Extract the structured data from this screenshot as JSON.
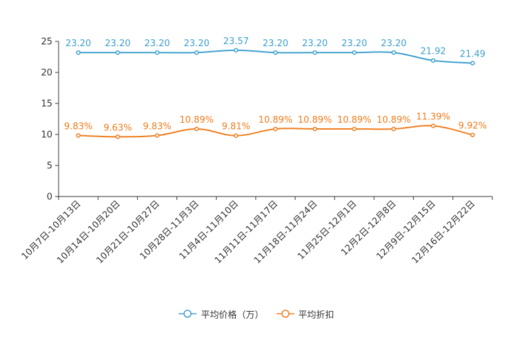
{
  "chart_data": {
    "type": "line",
    "title": "",
    "xlabel": "",
    "ylabel": "",
    "ylim": [
      0,
      25
    ],
    "yticks": [
      0,
      5,
      10,
      15,
      20,
      25
    ],
    "grid": false,
    "legend_position": "bottom-center",
    "categories": [
      "10月7日-10月13日",
      "10月14日-10月20日",
      "10月21日-10月27日",
      "10月28日-11月3日",
      "11月4日-11月10日",
      "11月11日-11月17日",
      "11月18日-11月24日",
      "11月25日-12月1日",
      "12月2日-12月8日",
      "12月9日-12月15日",
      "12月16日-12月22日"
    ],
    "series": [
      {
        "name": "平均价格（万）",
        "color": "#3d9fce",
        "values": [
          23.2,
          23.2,
          23.2,
          23.2,
          23.57,
          23.2,
          23.2,
          23.2,
          23.2,
          21.92,
          21.49
        ],
        "labels": [
          "23.20",
          "23.20",
          "23.20",
          "23.20",
          "23.57",
          "23.20",
          "23.20",
          "23.20",
          "23.20",
          "21.92",
          "21.49"
        ]
      },
      {
        "name": "平均折扣",
        "color": "#f07c1c",
        "values": [
          9.83,
          9.63,
          9.83,
          10.89,
          9.81,
          10.89,
          10.89,
          10.89,
          10.89,
          11.39,
          9.92
        ],
        "labels": [
          "9.83%",
          "9.63%",
          "9.83%",
          "10.89%",
          "9.81%",
          "10.89%",
          "10.89%",
          "10.89%",
          "10.89%",
          "11.39%",
          "9.92%"
        ]
      }
    ]
  },
  "legend": {
    "items": [
      {
        "label": "平均价格（万）",
        "color": "#3d9fce",
        "icon": "circle-line-icon"
      },
      {
        "label": "平均折扣",
        "color": "#f07c1c",
        "icon": "circle-line-icon"
      }
    ]
  }
}
